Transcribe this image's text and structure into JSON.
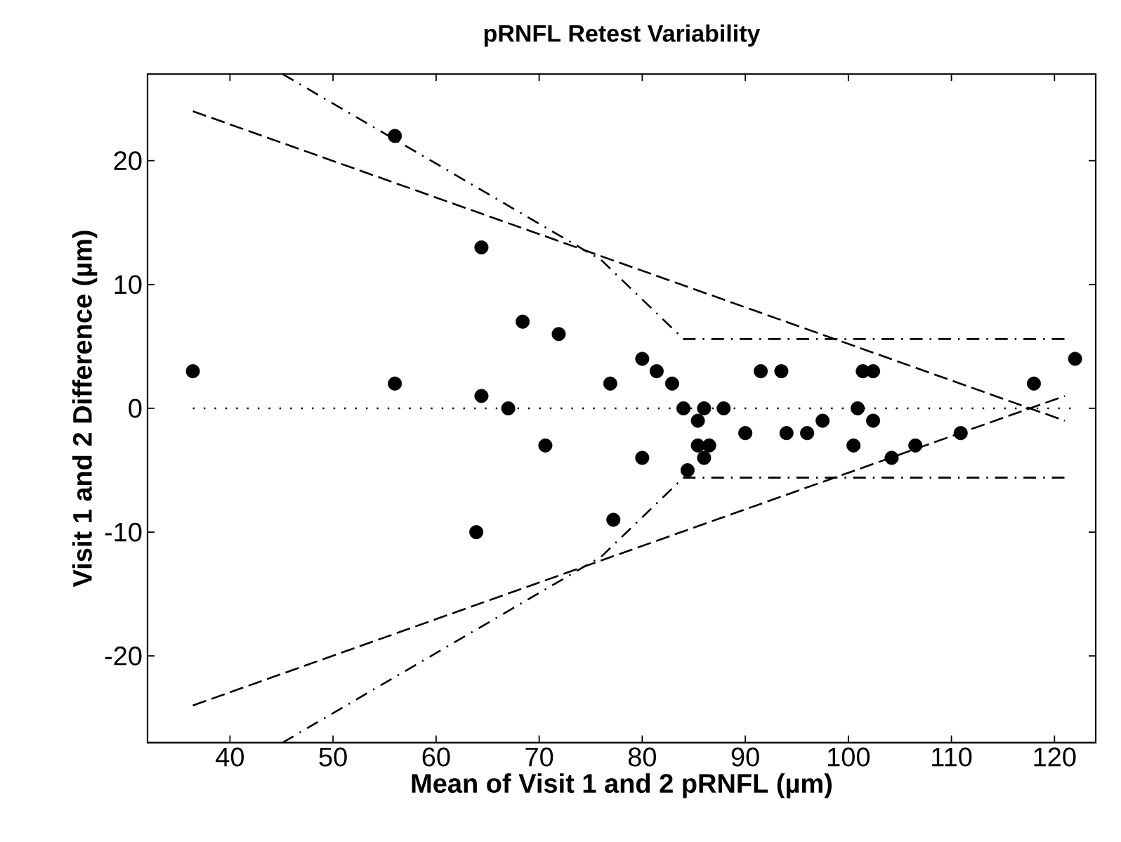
{
  "chart_data": {
    "type": "scatter",
    "title": "pRNFL Retest Variability",
    "xlabel": "Mean of Visit 1 and 2 pRNFL (µm)",
    "ylabel": "Visit 1 and 2 Difference (µm)",
    "xlim": [
      32,
      124
    ],
    "ylim": [
      -27,
      27
    ],
    "xticks": [
      40,
      50,
      60,
      70,
      80,
      90,
      100,
      110,
      120
    ],
    "yticks": [
      -20,
      -10,
      0,
      10,
      20
    ],
    "series": [
      {
        "color": "#000000",
        "marker": "circle",
        "x": [
          36.4,
          56,
          56,
          64.4,
          64.4,
          67,
          68.4,
          71.9,
          70.6,
          63.9,
          76.9,
          77.2,
          80,
          81.4,
          82.9,
          84,
          86,
          87.9,
          85.4,
          91.5,
          93.5,
          101.4,
          102.4,
          118,
          122,
          100.9,
          102.4,
          90,
          94,
          96,
          97.5,
          110.9,
          85.4,
          86.5,
          100.5,
          106.5,
          80,
          86,
          104.2,
          84.4
        ],
        "values": [
          3,
          22,
          2,
          13,
          1,
          0,
          7,
          6,
          -3,
          -10,
          2,
          -9,
          4,
          3,
          2,
          0,
          0,
          0,
          -1,
          3,
          3,
          3,
          3,
          2,
          4,
          0,
          -1,
          -2,
          -2,
          -2,
          -1,
          -2,
          -3,
          -3,
          -3,
          -3,
          -4,
          -4,
          -4,
          -5
        ]
      },
      {
        "type": "line",
        "color": "#000000",
        "line_style": "dotted",
        "x": [
          36.4,
          122
        ],
        "values": [
          0,
          0
        ]
      },
      {
        "type": "line",
        "color": "#000000",
        "line_style": "dashed",
        "x": [
          36.4,
          121
        ],
        "values": [
          24,
          -1
        ]
      },
      {
        "type": "line",
        "color": "#000000",
        "line_style": "dashed",
        "x": [
          36.4,
          121
        ],
        "values": [
          -24,
          1
        ]
      },
      {
        "type": "line",
        "color": "#000000",
        "line_style": "dashdot",
        "x": [
          45.1,
          76,
          84,
          121
        ],
        "values": [
          27,
          12,
          5.6,
          5.6
        ]
      },
      {
        "type": "line",
        "color": "#000000",
        "line_style": "dashdot",
        "x": [
          45.1,
          76,
          84,
          121
        ],
        "values": [
          -27,
          -12,
          -5.6,
          -5.6
        ]
      }
    ]
  }
}
